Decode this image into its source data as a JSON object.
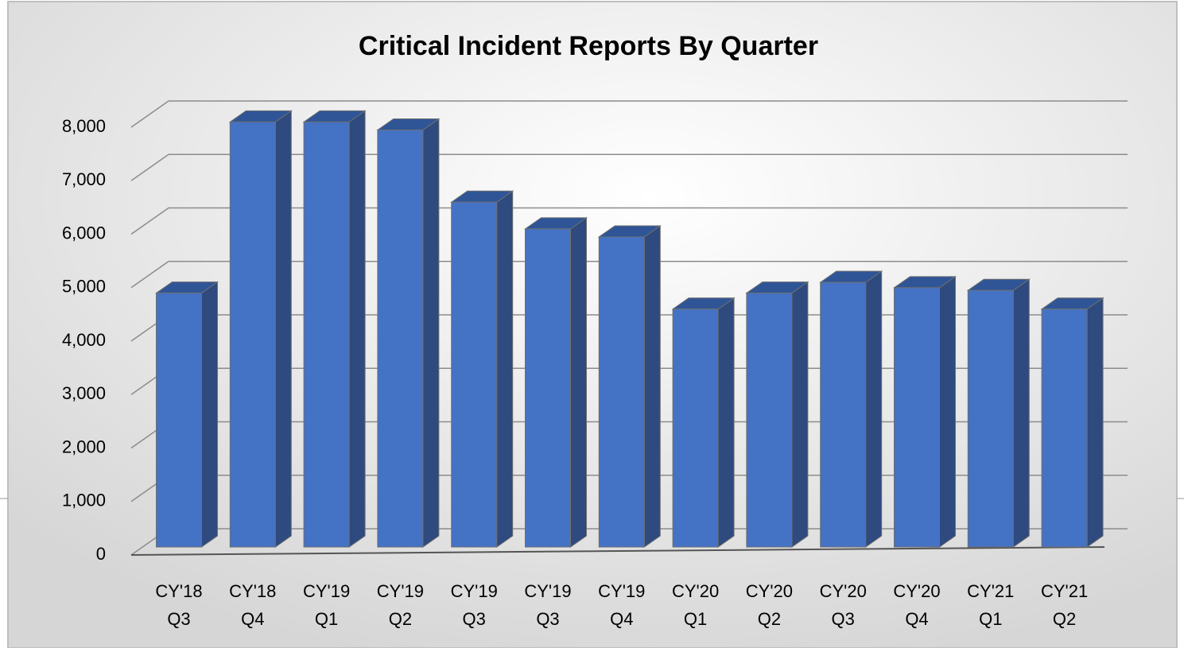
{
  "chart_data": {
    "type": "bar3d",
    "title": "Critical Incident Reports By Quarter",
    "categories": [
      [
        "CY'18",
        "Q3"
      ],
      [
        "CY'18",
        "Q4"
      ],
      [
        "CY'19",
        "Q1"
      ],
      [
        "CY'19",
        "Q2"
      ],
      [
        "CY'19",
        "Q3"
      ],
      [
        "CY'19",
        "Q3"
      ],
      [
        "CY'19",
        "Q4"
      ],
      [
        "CY'20",
        "Q1"
      ],
      [
        "CY'20",
        "Q2"
      ],
      [
        "CY'20",
        "Q3"
      ],
      [
        "CY'20",
        "Q4"
      ],
      [
        "CY'21",
        "Q1"
      ],
      [
        "CY'21",
        "Q2"
      ]
    ],
    "values": [
      4750,
      7950,
      7950,
      7800,
      6450,
      5950,
      5800,
      4450,
      4750,
      4950,
      4850,
      4800,
      4450
    ],
    "color": "#4472c4",
    "ylim": [
      0,
      8000
    ],
    "yticks": [
      0,
      {
        "value": 1000,
        "label": "1,000"
      },
      {
        "value": 2000,
        "label": "2,000"
      },
      {
        "value": 3000,
        "label": "3,000"
      },
      {
        "value": 4000,
        "label": "4,000"
      },
      {
        "value": 5000,
        "label": "5,000"
      },
      {
        "value": 6000,
        "label": "6,000"
      },
      {
        "value": 7000,
        "label": "7,000"
      },
      {
        "value": 8000,
        "label": "8,000"
      }
    ],
    "grid": true
  }
}
